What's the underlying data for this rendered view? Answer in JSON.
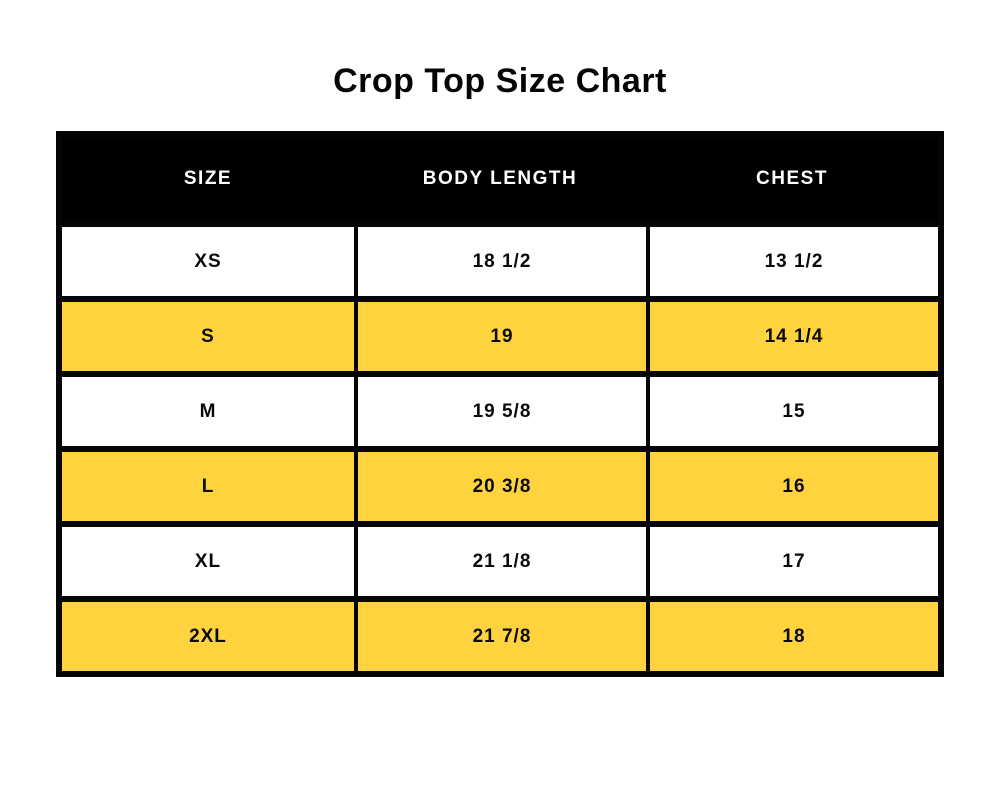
{
  "page_title": "Crop Top Size Chart",
  "colors": {
    "accent_yellow": "#ffd33e",
    "header_bg": "#000000",
    "header_text": "#ffffff",
    "grid_black": "#050505"
  },
  "chart_data": {
    "type": "table",
    "title": "Crop Top Size Chart",
    "columns": [
      "SIZE",
      "BODY LENGTH",
      "CHEST"
    ],
    "rows": [
      {
        "size": "XS",
        "body_length": "18 1/2",
        "chest": "13 1/2",
        "highlighted": false
      },
      {
        "size": "S",
        "body_length": "19",
        "chest": "14 1/4",
        "highlighted": true
      },
      {
        "size": "M",
        "body_length": "19 5/8",
        "chest": "15",
        "highlighted": false
      },
      {
        "size": "L",
        "body_length": "20 3/8",
        "chest": "16",
        "highlighted": true
      },
      {
        "size": "XL",
        "body_length": "21 1/8",
        "chest": "17",
        "highlighted": false
      },
      {
        "size": "2XL",
        "body_length": "21 7/8",
        "chest": "18",
        "highlighted": true
      }
    ],
    "layout": {
      "header_style": "black-bar-white-text",
      "zebra_highlight": "yellow-on-even-rows",
      "grid": "black-borders"
    }
  }
}
